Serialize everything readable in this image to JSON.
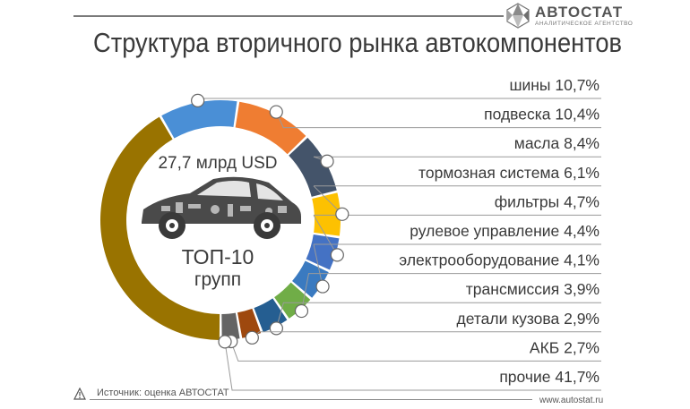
{
  "header": {
    "logo_name": "АВТОСТАТ",
    "logo_sub": "АНАЛИТИЧЕСКОЕ АГЕНТСТВО",
    "title": "Структура вторичного рынка автокомпонентов"
  },
  "center": {
    "total": "27,7 млрд USD",
    "top": "ТОП-10",
    "groups": "групп"
  },
  "footer": {
    "source": "Источник: оценка АВТОСТАТ",
    "site": "www.autostat.ru",
    "warning_icon": "warning-triangle-icon"
  },
  "chart_data": {
    "type": "pie",
    "categories": [
      "шины",
      "подвеска",
      "масла",
      "тормозная система",
      "фильтры",
      "рулевое управление",
      "электрооборудование",
      "трансмиссия",
      "детали кузова",
      "АКБ",
      "прочие"
    ],
    "values": [
      10.7,
      10.4,
      8.4,
      6.1,
      4.7,
      4.4,
      4.1,
      3.9,
      2.9,
      2.7,
      41.7
    ],
    "labels": [
      "10,7%",
      "10,4%",
      "8,4%",
      "6,1%",
      "4,7%",
      "4,4%",
      "4,1%",
      "3,9%",
      "2,9%",
      "2,7%",
      "41,7%"
    ],
    "colors": [
      "#4a8fd6",
      "#ef7d32",
      "#44546a",
      "#fdc101",
      "#4472c4",
      "#3a7ac0",
      "#70ad47",
      "#255e91",
      "#9e480e",
      "#646464",
      "#997300",
      "#c2c2c2"
    ],
    "label_colors": [
      "#3a7ac0",
      "#ef7d32",
      "#44546a",
      "#fdc101",
      "#4472c4",
      "#3a7ac0",
      "#70ad47",
      "#255e91",
      "#9e480e",
      "#646464",
      "#997300",
      "#c2c2c2"
    ]
  }
}
